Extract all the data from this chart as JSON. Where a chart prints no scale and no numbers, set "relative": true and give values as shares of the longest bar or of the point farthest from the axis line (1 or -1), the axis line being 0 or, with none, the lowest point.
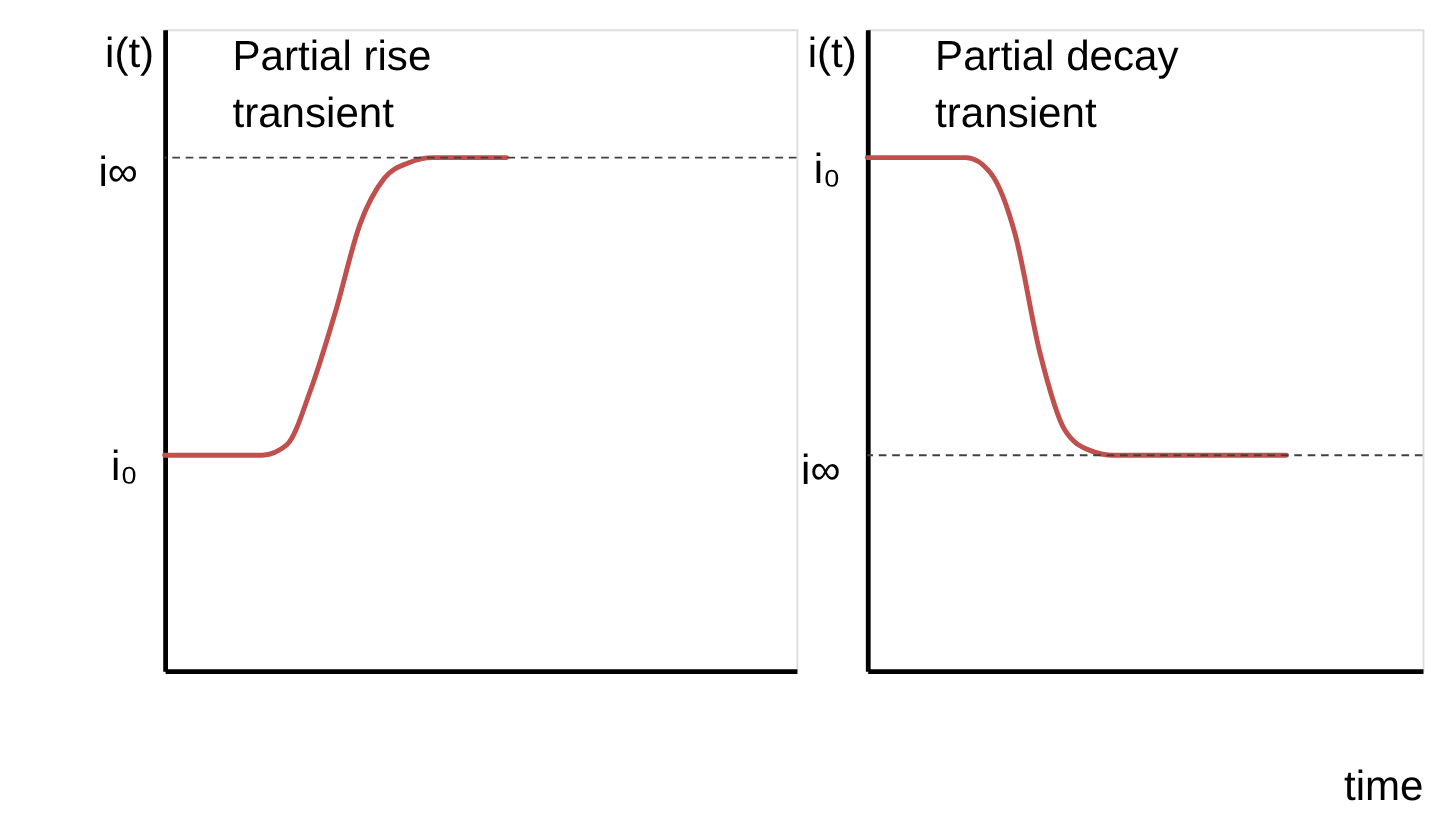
{
  "chart_data": [
    {
      "type": "line",
      "title": "Partial rise transient",
      "ylabel": "i(t)",
      "relative": true,
      "categories": [
        null,
        null,
        null,
        null,
        null,
        null,
        null,
        null,
        null,
        null,
        null,
        null,
        null,
        null,
        null,
        null,
        null,
        null,
        null,
        null,
        null,
        null,
        null,
        null
      ],
      "series": [
        {
          "color": "#c0504d",
          "values": [
            0.42,
            0.42,
            0.42,
            0.42,
            0.42,
            0.44,
            0.55,
            0.7,
            0.87,
            0.96,
            0.99,
            1.0,
            1.0,
            1.0,
            1.0,
            null,
            null,
            null,
            null,
            null,
            null,
            null,
            null,
            null
          ]
        }
      ],
      "ref_lines": [
        {
          "axis": "y",
          "value": 1.0,
          "label": "i∞",
          "color": "#404040",
          "line_style": "dashed"
        }
      ],
      "annotations": [
        "i₀"
      ],
      "grid": false,
      "marker": "none",
      "line_style": "solid"
    },
    {
      "type": "line",
      "title": "Partial decay transient",
      "ylabel": "i(t)",
      "xlabel": "time",
      "relative": true,
      "categories": [
        null,
        null,
        null,
        null,
        null,
        null,
        null,
        null,
        null,
        null,
        null,
        null,
        null,
        null,
        null,
        null,
        null,
        null,
        null,
        null,
        null
      ],
      "series": [
        {
          "color": "#c0504d",
          "values": [
            1.0,
            1.0,
            1.0,
            1.0,
            1.0,
            0.97,
            0.85,
            0.62,
            0.47,
            0.43,
            0.42,
            0.42,
            0.42,
            0.42,
            0.42,
            0.42,
            0.42,
            0.42,
            null,
            null,
            null
          ]
        }
      ],
      "ref_lines": [
        {
          "axis": "y",
          "value": 0.42,
          "label": "i∞",
          "color": "#404040",
          "line_style": "dashed"
        }
      ],
      "annotations": [
        "i₀"
      ],
      "grid": false,
      "marker": "none",
      "line_style": "solid"
    }
  ]
}
